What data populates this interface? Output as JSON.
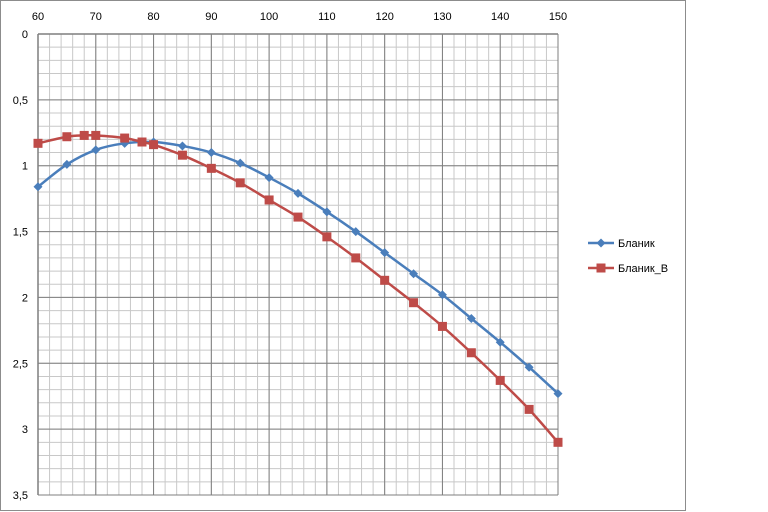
{
  "chart_data": {
    "type": "line",
    "x_axis": {
      "position": "top",
      "min": 60,
      "max": 150,
      "major_step": 10,
      "minor_step": 2,
      "ticks": [
        "60",
        "70",
        "80",
        "90",
        "100",
        "110",
        "120",
        "130",
        "140",
        "150"
      ]
    },
    "y_axis": {
      "reversed": true,
      "min": 0,
      "max": 3.5,
      "major_step": 0.5,
      "minor_step": 0.1,
      "ticks": [
        "0",
        "0,5",
        "1",
        "1,5",
        "2",
        "2,5",
        "3",
        "3,5"
      ]
    },
    "grid": true,
    "legend_position": "right",
    "series": [
      {
        "name": "Бланик",
        "color": "#4a7ebb",
        "marker": "diamond",
        "x": [
          60,
          65,
          70,
          75,
          80,
          85,
          90,
          95,
          100,
          105,
          110,
          115,
          120,
          125,
          130,
          135,
          140,
          145,
          150
        ],
        "y": [
          1.16,
          0.99,
          0.88,
          0.83,
          0.82,
          0.85,
          0.9,
          0.98,
          1.09,
          1.21,
          1.35,
          1.5,
          1.66,
          1.82,
          1.98,
          2.16,
          2.34,
          2.53,
          2.73
        ]
      },
      {
        "name": "Бланик_B",
        "color": "#be4b48",
        "marker": "square",
        "x": [
          60,
          65,
          68,
          70,
          75,
          78,
          80,
          85,
          90,
          95,
          100,
          105,
          110,
          115,
          120,
          125,
          130,
          135,
          140,
          145,
          150
        ],
        "y": [
          0.83,
          0.78,
          0.77,
          0.77,
          0.79,
          0.82,
          0.84,
          0.92,
          1.02,
          1.13,
          1.26,
          1.39,
          1.54,
          1.7,
          1.87,
          2.04,
          2.22,
          2.42,
          2.63,
          2.85,
          3.1
        ]
      }
    ]
  }
}
